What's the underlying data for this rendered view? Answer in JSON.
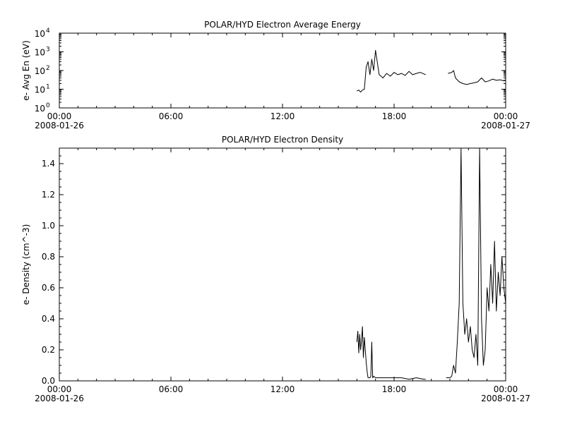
{
  "chart_data": [
    {
      "type": "line",
      "title": "POLAR/HYD  Electron Average Energy",
      "ylabel": "e- Avg En (eV)",
      "xlabel": "",
      "ylog": true,
      "ylim": [
        1,
        10000
      ],
      "yticks": [
        {
          "base": "10",
          "exp": "0",
          "value": 1
        },
        {
          "base": "10",
          "exp": "1",
          "value": 10
        },
        {
          "base": "10",
          "exp": "2",
          "value": 100
        },
        {
          "base": "10",
          "exp": "3",
          "value": 1000
        },
        {
          "base": "10",
          "exp": "4",
          "value": 10000
        }
      ],
      "xlim_hours": [
        0,
        24
      ],
      "xticks": [
        {
          "label": "00:00",
          "date": "2008-01-26",
          "hour": 0
        },
        {
          "label": "06:00",
          "date": "",
          "hour": 6
        },
        {
          "label": "12:00",
          "date": "",
          "hour": 12
        },
        {
          "label": "18:00",
          "date": "",
          "hour": 18
        },
        {
          "label": "00:00",
          "date": "2008-01-27",
          "hour": 24
        }
      ],
      "grid": false,
      "segments": [
        {
          "x": [
            16.0,
            16.1,
            16.2,
            16.3,
            16.4,
            16.5,
            16.6,
            16.7,
            16.8,
            16.9,
            17.0,
            17.2,
            17.4,
            17.6,
            17.8,
            18.0,
            18.2,
            18.4,
            18.6,
            18.8,
            19.0,
            19.2,
            19.4,
            19.7
          ],
          "y": [
            8,
            9,
            7,
            9,
            10,
            150,
            300,
            60,
            400,
            100,
            1200,
            60,
            40,
            70,
            50,
            80,
            60,
            70,
            55,
            90,
            60,
            70,
            80,
            60
          ]
        },
        {
          "x": [
            20.9,
            21.1,
            21.2,
            21.3,
            21.5,
            21.7,
            21.9,
            22.1,
            22.3,
            22.5,
            22.7,
            22.9,
            23.1,
            23.3,
            23.5,
            23.7,
            23.9,
            24.0
          ],
          "y": [
            70,
            80,
            100,
            40,
            25,
            20,
            18,
            20,
            22,
            25,
            40,
            25,
            28,
            35,
            30,
            32,
            28,
            30
          ]
        }
      ]
    },
    {
      "type": "line",
      "title": "POLAR/HYD  Electron Density",
      "ylabel": "e- Density (cm^-3)",
      "xlabel": "",
      "ylog": false,
      "ylim": [
        0,
        1.5
      ],
      "yticks": [
        {
          "label": "0.0",
          "value": 0.0
        },
        {
          "label": "0.2",
          "value": 0.2
        },
        {
          "label": "0.4",
          "value": 0.4
        },
        {
          "label": "0.6",
          "value": 0.6
        },
        {
          "label": "0.8",
          "value": 0.8
        },
        {
          "label": "1.0",
          "value": 1.0
        },
        {
          "label": "1.2",
          "value": 1.2
        },
        {
          "label": "1.4",
          "value": 1.4
        }
      ],
      "xlim_hours": [
        0,
        24
      ],
      "xticks": [
        {
          "label": "00:00",
          "date": "2008-01-26",
          "hour": 0
        },
        {
          "label": "06:00",
          "date": "",
          "hour": 6
        },
        {
          "label": "12:00",
          "date": "",
          "hour": 12
        },
        {
          "label": "18:00",
          "date": "",
          "hour": 18
        },
        {
          "label": "00:00",
          "date": "2008-01-27",
          "hour": 24
        }
      ],
      "grid": false,
      "segments": [
        {
          "x": [
            16.0,
            16.05,
            16.1,
            16.15,
            16.2,
            16.25,
            16.3,
            16.35,
            16.4,
            16.45,
            16.5,
            16.55,
            16.6,
            16.7,
            16.75,
            16.8,
            16.85,
            16.9,
            17.0,
            17.3,
            17.6,
            18.0,
            18.4,
            18.8,
            19.2,
            19.6,
            19.7
          ],
          "y": [
            0.25,
            0.32,
            0.18,
            0.3,
            0.2,
            0.26,
            0.35,
            0.15,
            0.28,
            0.2,
            0.12,
            0.06,
            0.02,
            0.02,
            0.03,
            0.25,
            0.02,
            0.03,
            0.02,
            0.02,
            0.02,
            0.02,
            0.02,
            0.01,
            0.02,
            0.01,
            0.01
          ]
        },
        {
          "x": [
            20.8,
            21.0,
            21.1,
            21.2,
            21.3,
            21.4,
            21.5,
            21.6,
            21.7,
            21.8,
            21.9,
            22.0,
            22.1,
            22.2,
            22.3,
            22.4,
            22.5,
            22.6,
            22.7,
            22.8,
            22.9,
            23.0,
            23.1,
            23.2,
            23.3,
            23.4,
            23.5,
            23.6,
            23.7,
            23.8,
            23.9,
            24.0
          ],
          "y": [
            0.02,
            0.02,
            0.03,
            0.1,
            0.05,
            0.25,
            0.5,
            1.5,
            0.5,
            0.3,
            0.4,
            0.25,
            0.35,
            0.2,
            0.15,
            0.3,
            0.1,
            1.5,
            0.4,
            0.1,
            0.2,
            0.6,
            0.45,
            0.75,
            0.5,
            0.9,
            0.45,
            0.7,
            0.55,
            0.8,
            0.6,
            0.5
          ]
        }
      ]
    }
  ]
}
